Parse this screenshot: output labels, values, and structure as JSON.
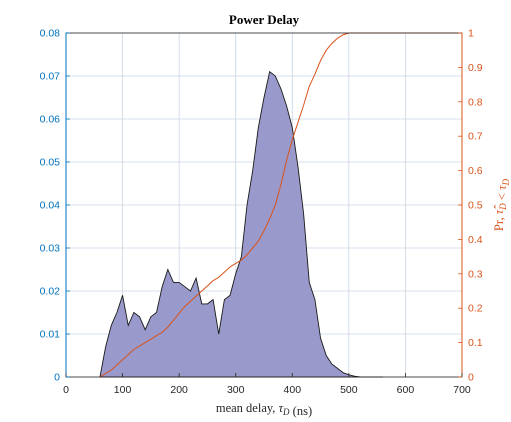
{
  "chart_data": {
    "type": "area",
    "title": "Power Delay",
    "xlabel": "mean delay, τ_D (ns)",
    "ylabel_left": "",
    "ylabel_right": "Pr, τ̂_D < τ_D",
    "xlim": [
      0,
      700
    ],
    "ylim_left": [
      0,
      0.08
    ],
    "ylim_right": [
      0,
      1
    ],
    "x_ticks": [
      "0",
      "100",
      "200",
      "300",
      "400",
      "500",
      "600",
      "700"
    ],
    "y_left_ticks": [
      "0",
      "0.01",
      "0.02",
      "0.03",
      "0.04",
      "0.05",
      "0.06",
      "0.07",
      "0.08"
    ],
    "y_right_ticks": [
      "0",
      "0.1",
      "0.2",
      "0.3",
      "0.4",
      "0.5",
      "0.6",
      "0.7",
      "0.8",
      "0.9",
      "1"
    ],
    "grid": true,
    "colors": {
      "pdf_fill": "#9999cc",
      "pdf_edge": "#1a1a1a",
      "cdf_line": "#d95319",
      "left_axis": "#0072bd",
      "right_axis": "#d95319",
      "grid": "#c8d6e4"
    },
    "series": [
      {
        "kind": "area",
        "axis": "left",
        "x": [
          60,
          70,
          80,
          90,
          100,
          110,
          120,
          130,
          140,
          150,
          160,
          170,
          180,
          190,
          200,
          210,
          220,
          230,
          240,
          250,
          260,
          270,
          280,
          290,
          300,
          310,
          320,
          330,
          340,
          350,
          360,
          370,
          380,
          390,
          400,
          410,
          420,
          430,
          440,
          450,
          460,
          470,
          480,
          490,
          500,
          510,
          520,
          530,
          540,
          550,
          560
        ],
        "y": [
          0,
          0.007,
          0.012,
          0.015,
          0.019,
          0.012,
          0.015,
          0.014,
          0.011,
          0.014,
          0.015,
          0.021,
          0.025,
          0.022,
          0.022,
          0.021,
          0.02,
          0.023,
          0.017,
          0.017,
          0.018,
          0.01,
          0.018,
          0.019,
          0.024,
          0.028,
          0.04,
          0.048,
          0.058,
          0.065,
          0.071,
          0.07,
          0.067,
          0.063,
          0.058,
          0.049,
          0.038,
          0.022,
          0.018,
          0.009,
          0.005,
          0.003,
          0.002,
          0.001,
          0.0005,
          0.0002,
          0,
          0,
          0,
          0,
          0
        ]
      },
      {
        "kind": "line",
        "axis": "right",
        "x": [
          60,
          70,
          80,
          90,
          100,
          110,
          120,
          130,
          140,
          150,
          160,
          170,
          180,
          190,
          200,
          210,
          220,
          230,
          240,
          250,
          260,
          270,
          280,
          290,
          300,
          310,
          320,
          330,
          340,
          350,
          360,
          370,
          380,
          390,
          400,
          410,
          420,
          430,
          440,
          450,
          460,
          470,
          480,
          490,
          500,
          510,
          520,
          530,
          540,
          550,
          560,
          600,
          650,
          700
        ],
        "y": [
          0,
          0.01,
          0.02,
          0.035,
          0.05,
          0.065,
          0.08,
          0.09,
          0.1,
          0.11,
          0.12,
          0.13,
          0.145,
          0.165,
          0.185,
          0.205,
          0.22,
          0.235,
          0.25,
          0.265,
          0.28,
          0.29,
          0.305,
          0.32,
          0.33,
          0.34,
          0.355,
          0.375,
          0.395,
          0.425,
          0.46,
          0.5,
          0.56,
          0.63,
          0.69,
          0.74,
          0.79,
          0.845,
          0.88,
          0.92,
          0.95,
          0.97,
          0.985,
          0.995,
          1,
          1,
          1,
          1,
          1,
          1,
          1,
          1,
          1,
          1
        ]
      }
    ]
  }
}
